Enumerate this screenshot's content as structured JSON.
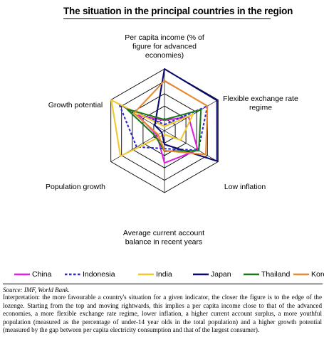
{
  "figure": {
    "title": "The situation in the principal countries in the region",
    "source": "Source: IMF, World Bank.",
    "note": "Interpretation: the more favourable a country's situation for a given indicator, the closer the figure is to the edge of the lozenge. Starting from the top and moving rightwards, this implies a per capita income close to that of the advanced economies, a more flexible exchange rate regime, lower inflation, a higher current account surplus, a more youthful population (measured as the percentage of under-14 year olds in the total population) and a higher growth potential (measured by the gap between per capita electricity consumption and that of the largest consumer)."
  },
  "chart_data": {
    "type": "radar",
    "axes": [
      {
        "label": [
          "Per capita income (% of",
          "figure for advanced",
          "economies)"
        ]
      },
      {
        "label": [
          "Flexible exchange rate",
          "regime"
        ]
      },
      {
        "label": [
          "Low inflation"
        ]
      },
      {
        "label": [
          "Average current account",
          "balance in recent years"
        ]
      },
      {
        "label": [
          "Population growth"
        ]
      },
      {
        "label": [
          "Growth potential"
        ]
      }
    ],
    "range": [
      0,
      1
    ],
    "rings": 5,
    "series": [
      {
        "name": "China",
        "color": "#e020e0",
        "dash": "solid",
        "values": [
          0.17,
          0.45,
          0.62,
          0.52,
          0.14,
          0.5
        ]
      },
      {
        "name": "Indonesia",
        "color": "#2a2ad6",
        "dash": "dashed",
        "values": [
          0.1,
          0.8,
          0.63,
          0.29,
          0.52,
          0.84
        ]
      },
      {
        "name": "India",
        "color": "#f0c830",
        "dash": "solid",
        "values": [
          0.07,
          0.53,
          0.3,
          0.06,
          0.82,
          0.99
        ]
      },
      {
        "name": "Japan",
        "color": "#0a0a6e",
        "dash": "solid",
        "values": [
          1.0,
          0.98,
          0.98,
          0.22,
          0.05,
          0.18
        ]
      },
      {
        "name": "Thailand",
        "color": "#1a7a1a",
        "dash": "solid",
        "values": [
          0.18,
          0.68,
          0.64,
          0.33,
          0.17,
          0.7
        ]
      },
      {
        "name": "Korea",
        "color": "#e88a30",
        "dash": "solid",
        "values": [
          0.81,
          0.8,
          0.77,
          0.32,
          0.12,
          0.57
        ]
      }
    ]
  }
}
